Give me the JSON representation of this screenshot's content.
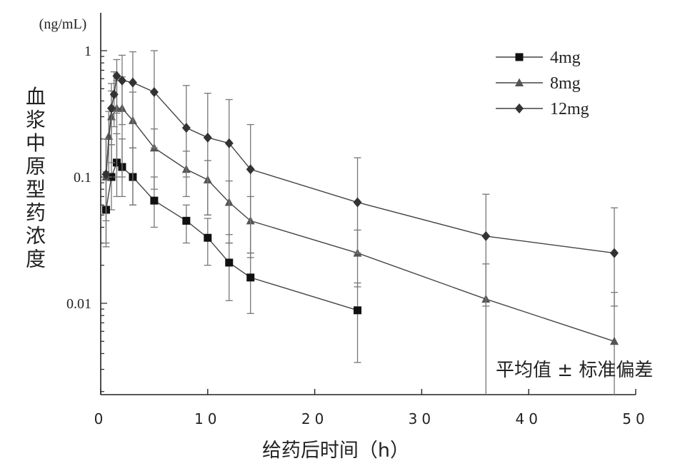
{
  "chart_data": {
    "type": "line",
    "x_axis": {
      "label": "给药后时间（h）",
      "range": [
        0,
        50
      ],
      "ticks": [
        0,
        10,
        20,
        30,
        40,
        50
      ],
      "tick_labels": [
        "0",
        "10",
        "20",
        "30",
        "40",
        "50"
      ]
    },
    "y_axis": {
      "label": "血浆中原型药浓度",
      "unit": "(ng/mL)",
      "scale": "log",
      "range": [
        0.002,
        1.5
      ],
      "ticks": [
        0.01,
        0.1,
        1
      ],
      "tick_labels": [
        "0.01",
        "0.1",
        "1"
      ]
    },
    "legend": {
      "position": "top-right"
    },
    "annotation": "平均值 ± 标准偏差",
    "series": [
      {
        "name": "4mg",
        "marker": "square",
        "color": "#111111",
        "points": [
          {
            "x": 0.5,
            "y": 0.055,
            "lo": 0.028,
            "hi": 0.11
          },
          {
            "x": 1,
            "y": 0.1,
            "lo": 0.055,
            "hi": 0.18
          },
          {
            "x": 1.5,
            "y": 0.13,
            "lo": 0.07,
            "hi": 0.22
          },
          {
            "x": 2,
            "y": 0.12,
            "lo": 0.07,
            "hi": 0.2
          },
          {
            "x": 3,
            "y": 0.1,
            "lo": 0.06,
            "hi": 0.17
          },
          {
            "x": 5,
            "y": 0.065,
            "lo": 0.04,
            "hi": 0.1
          },
          {
            "x": 8,
            "y": 0.045,
            "lo": 0.03,
            "hi": 0.06
          },
          {
            "x": 10,
            "y": 0.033,
            "lo": 0.02,
            "hi": 0.047
          },
          {
            "x": 12,
            "y": 0.021,
            "lo": 0.0105,
            "hi": 0.035
          },
          {
            "x": 14,
            "y": 0.016,
            "lo": 0.0083,
            "hi": 0.025
          },
          {
            "x": 24,
            "y": 0.0088,
            "lo": 0.0034,
            "hi": 0.0145
          }
        ]
      },
      {
        "name": "8mg",
        "marker": "triangle",
        "color": "#555555",
        "points": [
          {
            "x": 0.5,
            "y": 0.1,
            "lo": 0.03,
            "hi": 0.2
          },
          {
            "x": 0.75,
            "y": 0.21,
            "lo": 0.1,
            "hi": 0.33
          },
          {
            "x": 1,
            "y": 0.3,
            "lo": 0.13,
            "hi": 0.48
          },
          {
            "x": 1.5,
            "y": 0.35,
            "lo": 0.1,
            "hi": 0.58
          },
          {
            "x": 2,
            "y": 0.35,
            "lo": 0.1,
            "hi": 0.62
          },
          {
            "x": 3,
            "y": 0.28,
            "lo": 0.06,
            "hi": 0.47
          },
          {
            "x": 5,
            "y": 0.17,
            "lo": 0.08,
            "hi": 0.24
          },
          {
            "x": 8,
            "y": 0.115,
            "lo": 0.07,
            "hi": 0.16
          },
          {
            "x": 10,
            "y": 0.095,
            "lo": 0.05,
            "hi": 0.135
          },
          {
            "x": 12,
            "y": 0.063,
            "lo": 0.03,
            "hi": 0.093
          },
          {
            "x": 14,
            "y": 0.045,
            "lo": 0.023,
            "hi": 0.07
          },
          {
            "x": 24,
            "y": 0.025,
            "lo": 0.0135,
            "hi": 0.038
          },
          {
            "x": 36,
            "y": 0.0108,
            "lo": 0.0015,
            "hi": 0.0205
          },
          {
            "x": 48,
            "y": 0.005,
            "lo": 0.0015,
            "hi": 0.0122
          }
        ]
      },
      {
        "name": "12mg",
        "marker": "diamond",
        "color": "#333333",
        "points": [
          {
            "x": 0.5,
            "y": 0.105,
            "lo": 0.045,
            "hi": 0.2
          },
          {
            "x": 1,
            "y": 0.35,
            "lo": 0.18,
            "hi": 0.55
          },
          {
            "x": 1.25,
            "y": 0.45,
            "lo": 0.25,
            "hi": 0.68
          },
          {
            "x": 1.5,
            "y": 0.63,
            "lo": 0.32,
            "hi": 0.85
          },
          {
            "x": 2,
            "y": 0.58,
            "lo": 0.26,
            "hi": 0.92
          },
          {
            "x": 3,
            "y": 0.56,
            "lo": 0.17,
            "hi": 0.98
          },
          {
            "x": 5,
            "y": 0.47,
            "lo": 0.17,
            "hi": 1.0
          },
          {
            "x": 8,
            "y": 0.245,
            "lo": 0.1,
            "hi": 0.53
          },
          {
            "x": 10,
            "y": 0.205,
            "lo": 0.05,
            "hi": 0.46
          },
          {
            "x": 12,
            "y": 0.185,
            "lo": 0.03,
            "hi": 0.41
          },
          {
            "x": 14,
            "y": 0.115,
            "lo": 0.025,
            "hi": 0.26
          },
          {
            "x": 24,
            "y": 0.063,
            "lo": 0.025,
            "hi": 0.142
          },
          {
            "x": 36,
            "y": 0.034,
            "lo": 0.0095,
            "hi": 0.073
          },
          {
            "x": 48,
            "y": 0.025,
            "lo": 0.0095,
            "hi": 0.057
          }
        ]
      }
    ]
  }
}
